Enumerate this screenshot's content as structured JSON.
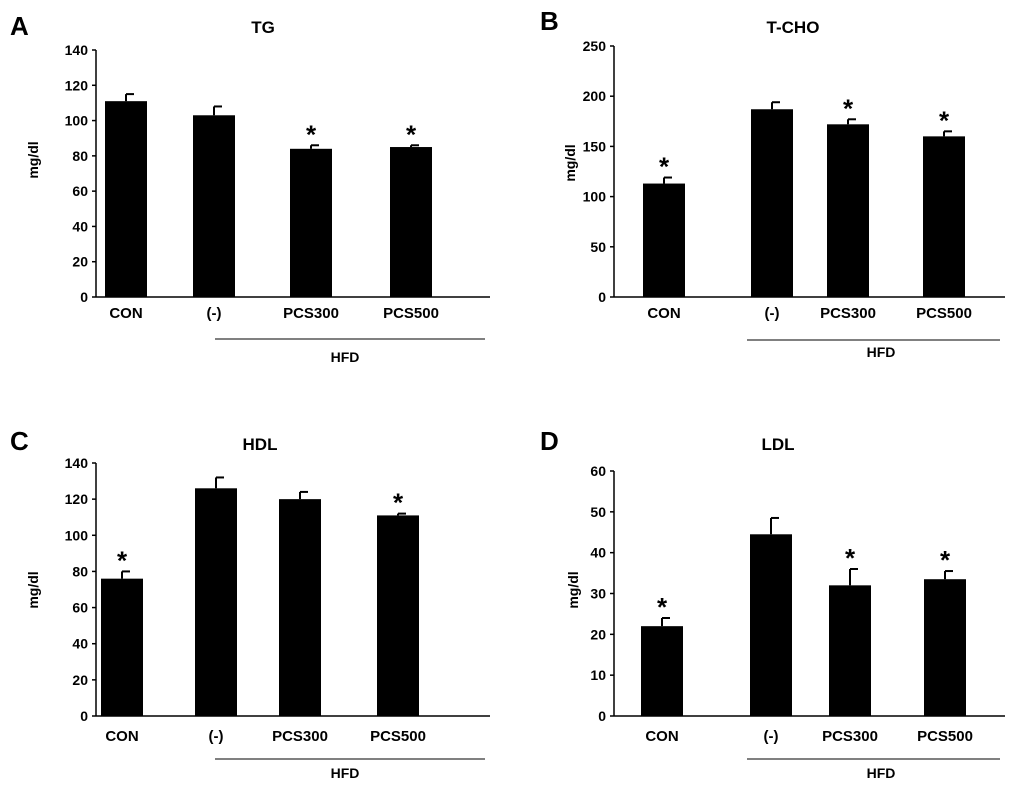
{
  "colors": {
    "bar": "#000000",
    "axis": "#000000",
    "background": "#ffffff"
  },
  "chart_data": [
    {
      "panel_label": "A",
      "title": "TG",
      "type": "bar",
      "ylabel": "mg/dl",
      "ylim": [
        0,
        140
      ],
      "yticks": [
        "0",
        "20",
        "40",
        "60",
        "80",
        "100",
        "120",
        "140"
      ],
      "categories": [
        "CON",
        "(-)",
        "PCS300",
        "PCS500"
      ],
      "values": [
        111,
        103,
        84,
        85
      ],
      "errors": [
        4,
        5,
        2,
        1
      ],
      "significance": [
        "",
        "",
        "*",
        "*"
      ],
      "group_label": "HFD"
    },
    {
      "panel_label": "B",
      "title": "T-CHO",
      "type": "bar",
      "ylabel": "mg/dl",
      "ylim": [
        0,
        250
      ],
      "yticks": [
        "0",
        "50",
        "100",
        "150",
        "200",
        "250"
      ],
      "categories": [
        "CON",
        "(-)",
        "PCS300",
        "PCS500"
      ],
      "values": [
        113,
        187,
        172,
        160
      ],
      "errors": [
        6,
        7,
        5,
        5
      ],
      "significance": [
        "*",
        "",
        "*",
        "*"
      ],
      "group_label": "HFD"
    },
    {
      "panel_label": "C",
      "title": "HDL",
      "type": "bar",
      "ylabel": "mg/dl",
      "ylim": [
        0,
        140
      ],
      "yticks": [
        "0",
        "20",
        "40",
        "60",
        "80",
        "100",
        "120",
        "140"
      ],
      "categories": [
        "CON",
        "(-)",
        "PCS300",
        "PCS500"
      ],
      "values": [
        76,
        126,
        120,
        111
      ],
      "errors": [
        4,
        6,
        4,
        1
      ],
      "significance": [
        "*",
        "",
        "",
        "*"
      ],
      "group_label": "HFD"
    },
    {
      "panel_label": "D",
      "title": "LDL",
      "type": "bar",
      "ylabel": "mg/dl",
      "ylim": [
        0,
        60
      ],
      "yticks": [
        "0",
        "10",
        "20",
        "30",
        "40",
        "50",
        "60"
      ],
      "categories": [
        "CON",
        "(-)",
        "PCS300",
        "PCS500"
      ],
      "values": [
        22,
        44.5,
        32,
        33.5
      ],
      "errors": [
        2,
        4,
        4,
        2
      ],
      "significance": [
        "*",
        "",
        "*",
        "*"
      ],
      "group_label": "HFD"
    }
  ]
}
